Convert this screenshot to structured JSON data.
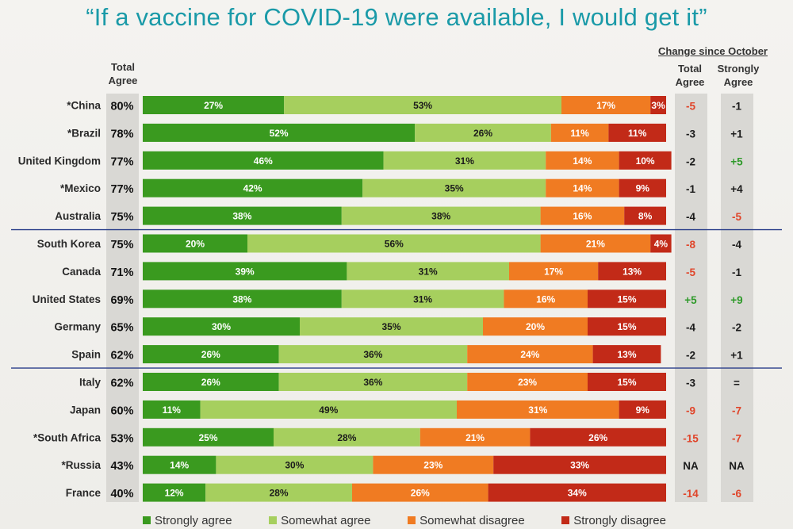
{
  "chart_data": {
    "type": "bar",
    "orientation": "horizontal",
    "stacked": true,
    "title": "“If a vaccine for COVID-19 were available, I would get it”",
    "total_agree_header": [
      "Total",
      "Agree"
    ],
    "change_header": "Change since October",
    "change_col_headers": {
      "total": [
        "Total",
        "Agree"
      ],
      "strongly": [
        "Strongly",
        "Agree"
      ]
    },
    "xlim": [
      0,
      100
    ],
    "unit": "%",
    "legend": [
      {
        "name": "Strongly agree",
        "color": "#3a9a1f"
      },
      {
        "name": "Somewhat agree",
        "color": "#a6cf5e"
      },
      {
        "name": "Somewhat disagree",
        "color": "#f07b22"
      },
      {
        "name": "Strongly disagree",
        "color": "#c22a18"
      }
    ],
    "categories": [
      "*China",
      "*Brazil",
      "United Kingdom",
      "*Mexico",
      "Australia",
      "South Korea",
      "Canada",
      "United States",
      "Germany",
      "Spain",
      "Italy",
      "Japan",
      "*South Africa",
      "*Russia",
      "France"
    ],
    "total_agree": [
      "80%",
      "78%",
      "77%",
      "77%",
      "75%",
      "75%",
      "71%",
      "69%",
      "65%",
      "62%",
      "62%",
      "60%",
      "53%",
      "43%",
      "40%"
    ],
    "series": [
      {
        "name": "Strongly agree",
        "values": [
          27,
          52,
          46,
          42,
          38,
          20,
          39,
          38,
          30,
          26,
          26,
          11,
          25,
          14,
          12
        ]
      },
      {
        "name": "Somewhat agree",
        "values": [
          53,
          26,
          31,
          35,
          38,
          56,
          31,
          31,
          35,
          36,
          36,
          49,
          28,
          30,
          28
        ]
      },
      {
        "name": "Somewhat disagree",
        "values": [
          17,
          11,
          14,
          14,
          16,
          21,
          17,
          16,
          20,
          24,
          23,
          31,
          21,
          23,
          26
        ]
      },
      {
        "name": "Strongly disagree",
        "values": [
          3,
          11,
          10,
          9,
          8,
          4,
          13,
          15,
          15,
          13,
          15,
          9,
          26,
          33,
          34
        ]
      }
    ],
    "change_total_agree": [
      "-5",
      "-3",
      "-2",
      "-1",
      "-4",
      "-8",
      "-5",
      "+5",
      "-4",
      "-2",
      "-3",
      "-9",
      "-15",
      "NA",
      "-14"
    ],
    "change_strongly_agree": [
      "-1",
      "+1",
      "+5",
      "+4",
      "-5",
      "-4",
      "-1",
      "+9",
      "-2",
      "+1",
      "=",
      "-7",
      "-7",
      "NA",
      "-6"
    ],
    "group_dividers_after": [
      "Australia",
      "Spain"
    ]
  }
}
